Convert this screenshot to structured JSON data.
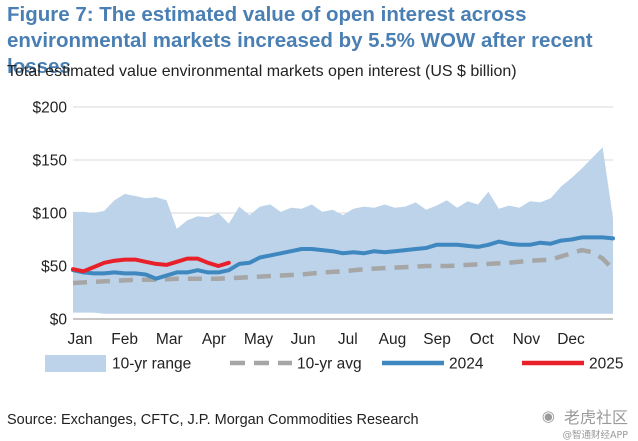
{
  "figure": {
    "title": "Figure 7: The estimated value of open interest across environmental markets increased by 5.5% WOW after recent losses",
    "subtitle": "Total estimated value environmental markets open interest (US $ billion)",
    "source": "Source: Exchanges, CFTC, J.P. Morgan Commodities Research"
  },
  "watermark": {
    "logo_icon": "tiger-logo-icon",
    "main": "老虎社区",
    "sub": "@智通财经APP"
  },
  "chart_data": {
    "type": "line",
    "title": "Total estimated value environmental markets open interest (US $ billion)",
    "xlabel": "",
    "ylabel": "",
    "x_range": [
      0,
      52
    ],
    "ylim": [
      0,
      200
    ],
    "y_ticks": [
      0,
      50,
      100,
      150,
      200
    ],
    "y_tick_labels": [
      "$0",
      "$50",
      "$100",
      "$150",
      "$200"
    ],
    "x_tick_labels": [
      "Jan",
      "Feb",
      "Mar",
      "Apr",
      "May",
      "Jun",
      "Jul",
      "Aug",
      "Sep",
      "Oct",
      "Nov",
      "Dec"
    ],
    "grid": true,
    "legend_position": "bottom",
    "colors": {
      "range": "#bcd3ea",
      "avg": "#a6a6a6",
      "y2024": "#3e88bf",
      "y2025": "#e8202a"
    },
    "series": [
      {
        "name": "10-yr range",
        "kind": "band",
        "x": [
          0,
          1,
          2,
          3,
          4,
          5,
          6,
          7,
          8,
          9,
          10,
          11,
          12,
          13,
          14,
          15,
          16,
          17,
          18,
          19,
          20,
          21,
          22,
          23,
          24,
          25,
          26,
          27,
          28,
          29,
          30,
          31,
          32,
          33,
          34,
          35,
          36,
          37,
          38,
          39,
          40,
          41,
          42,
          43,
          44,
          45,
          46,
          47,
          48,
          49,
          50,
          51,
          52
        ],
        "upper": [
          101,
          101,
          100,
          102,
          112,
          118,
          116,
          114,
          115,
          112,
          85,
          93,
          97,
          96,
          100,
          90,
          106,
          98,
          106,
          108,
          101,
          105,
          104,
          108,
          101,
          103,
          98,
          104,
          106,
          105,
          108,
          105,
          106,
          110,
          103,
          107,
          112,
          105,
          111,
          108,
          120,
          104,
          107,
          105,
          111,
          110,
          114,
          125,
          133,
          142,
          152,
          162,
          95
        ],
        "lower": [
          6,
          6,
          6,
          5,
          5,
          5,
          5,
          5,
          5,
          5,
          5,
          5,
          5,
          5,
          5,
          5,
          5,
          5,
          5,
          5,
          5,
          5,
          5,
          5,
          5,
          5,
          5,
          5,
          5,
          5,
          5,
          5,
          5,
          5,
          5,
          5,
          5,
          5,
          5,
          5,
          5,
          5,
          5,
          5,
          5,
          5,
          5,
          5,
          5,
          5,
          5,
          5,
          5
        ]
      },
      {
        "name": "10-yr avg",
        "kind": "dashed-line",
        "x": [
          0,
          2,
          4,
          6,
          8,
          10,
          12,
          14,
          16,
          18,
          20,
          22,
          24,
          26,
          28,
          30,
          32,
          34,
          36,
          38,
          40,
          42,
          44,
          46,
          48,
          49,
          50,
          51,
          52
        ],
        "values": [
          34,
          35,
          36,
          37,
          37,
          38,
          38,
          38,
          39,
          40,
          41,
          42,
          44,
          45,
          47,
          48,
          49,
          50,
          50,
          51,
          52,
          53,
          55,
          56,
          62,
          65,
          63,
          57,
          47
        ]
      },
      {
        "name": "2024",
        "kind": "line",
        "x": [
          0,
          1,
          2,
          3,
          4,
          5,
          6,
          7,
          8,
          9,
          10,
          11,
          12,
          13,
          14,
          15,
          16,
          17,
          18,
          19,
          20,
          21,
          22,
          23,
          24,
          25,
          26,
          27,
          28,
          29,
          30,
          31,
          32,
          33,
          34,
          35,
          36,
          37,
          38,
          39,
          40,
          41,
          42,
          43,
          44,
          45,
          46,
          47,
          48,
          49,
          50,
          51,
          52
        ],
        "values": [
          46,
          44,
          43,
          43,
          44,
          43,
          43,
          42,
          38,
          41,
          44,
          44,
          46,
          44,
          44,
          46,
          52,
          53,
          58,
          60,
          62,
          64,
          66,
          66,
          65,
          64,
          62,
          63,
          62,
          64,
          63,
          64,
          65,
          66,
          67,
          70,
          70,
          70,
          69,
          68,
          70,
          73,
          71,
          70,
          70,
          72,
          71,
          74,
          75,
          77,
          77,
          77,
          76
        ]
      },
      {
        "name": "2025",
        "kind": "line",
        "x": [
          0,
          1,
          2,
          3,
          4,
          5,
          6,
          7,
          8,
          9,
          10,
          11,
          12,
          13,
          14,
          15
        ],
        "values": [
          47,
          45,
          49,
          53,
          55,
          56,
          56,
          54,
          52,
          51,
          54,
          57,
          57,
          53,
          50,
          53
        ]
      }
    ]
  }
}
